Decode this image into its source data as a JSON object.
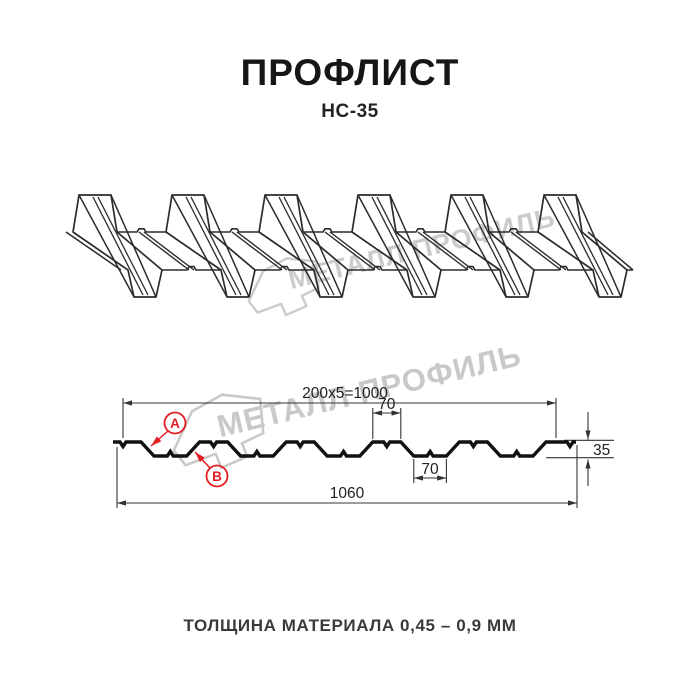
{
  "header": {
    "title": "ПРОФЛИСТ",
    "subtitle": "НС-35"
  },
  "watermark": {
    "text": "МЕТАЛЛ ПРОФИЛЬ"
  },
  "section": {
    "dims": {
      "working_width": "200x5=1000",
      "crest_top_width": "70",
      "valley_bottom_width": "70",
      "profile_height": "35",
      "total_width": "1060"
    },
    "labels": {
      "a": "A",
      "b": "B"
    }
  },
  "footer": {
    "note": "ТОЛЩИНА МАТЕРИАЛА 0,45 – 0,9 ММ"
  },
  "colors": {
    "line": "#111111",
    "drawing_line": "#2b2b2b",
    "dimension_line": "#333333",
    "accent_red": "#e31e24",
    "watermark_gray": "#c9c9c9"
  }
}
